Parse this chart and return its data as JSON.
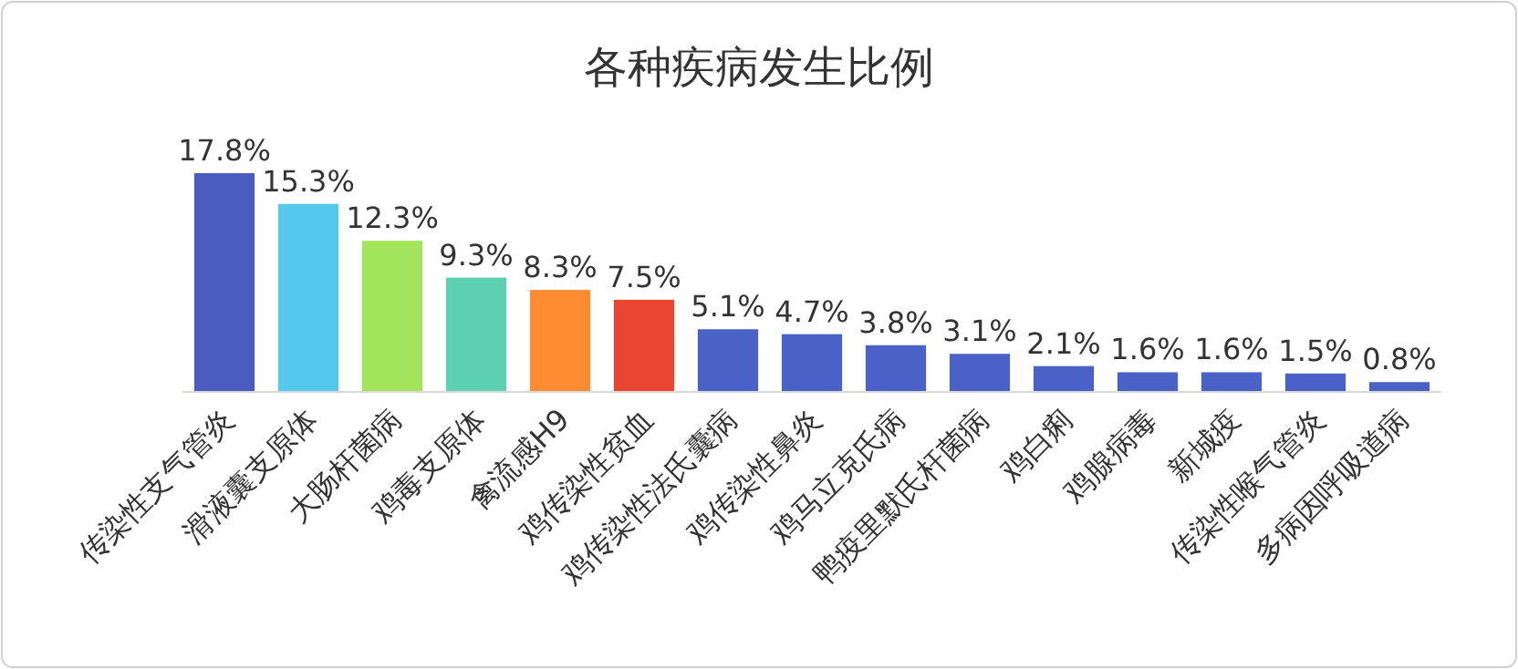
{
  "chart_data": {
    "type": "bar",
    "title": "各种疾病发生比例",
    "categories": [
      "传染性支气管炎",
      "滑液囊支原体",
      "大肠杆菌病",
      "鸡毒支原体",
      "禽流感H9",
      "鸡传染性贫血",
      "鸡传染性法氏囊病",
      "鸡传染性鼻炎",
      "鸡马立克氏病",
      "鸭疫里默氏杆菌病",
      "鸡白痢",
      "鸡腺病毒",
      "新城疫",
      "传染性喉气管炎",
      "多病因呼吸道病"
    ],
    "values": [
      17.8,
      15.3,
      12.3,
      9.3,
      8.3,
      7.5,
      5.1,
      4.7,
      3.8,
      3.1,
      2.1,
      1.6,
      1.6,
      1.5,
      0.8
    ],
    "colors": [
      "#4a5cc0",
      "#55c8ee",
      "#a2e45a",
      "#5ed0b2",
      "#ff8c32",
      "#ea4530",
      "#4a62c8",
      "#4a62c8",
      "#4a62c8",
      "#4a62c8",
      "#4a62c8",
      "#4a62c8",
      "#4a62c8",
      "#4a62c8",
      "#4a62c8"
    ],
    "value_labels": [
      "17.8%",
      "15.3%",
      "12.3%",
      "9.3%",
      "8.3%",
      "7.5%",
      "5.1%",
      "4.7%",
      "3.8%",
      "3.1%",
      "2.1%",
      "1.6%",
      "1.6%",
      "1.5%",
      "0.8%"
    ]
  }
}
